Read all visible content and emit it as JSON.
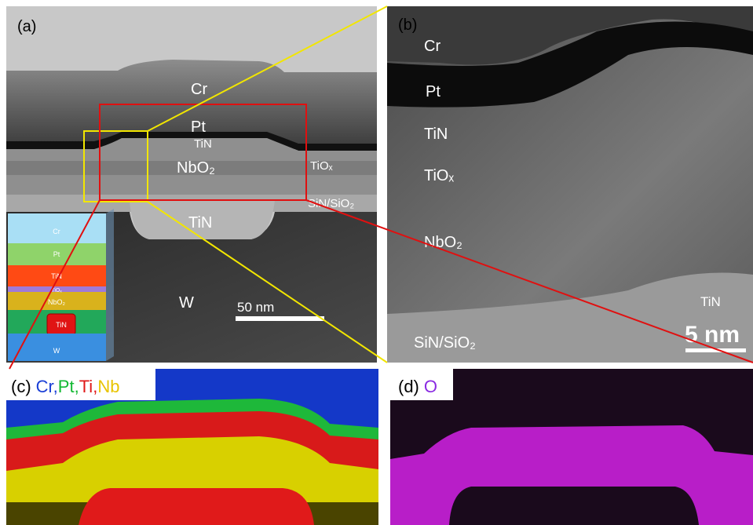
{
  "panels": {
    "a": {
      "label": "(a)",
      "layers": {
        "cr": "Cr",
        "pt": "Pt",
        "tin_top": "TiN",
        "nbo2": "NbO₂",
        "tiox": "TiOₓ",
        "sin": "SiN/SiO₂",
        "tin_bottom": "TiN",
        "w": "W"
      },
      "scale_bar": "50 nm",
      "inset": [
        "Cr",
        "Pt",
        "TiN",
        "TiOₓ",
        "NbO₂",
        "TiN",
        "W"
      ]
    },
    "b": {
      "label": "(b)",
      "layers": {
        "cr": "Cr",
        "pt": "Pt",
        "tin": "TiN",
        "tiox": "TiOₓ",
        "nbo2": "NbO₂",
        "tin_right": "TiN",
        "sin": "SiN/SiO₂"
      },
      "scale_bar": "5 nm"
    },
    "c": {
      "label": "(c)",
      "elements": [
        {
          "text": "Cr,",
          "color": "#1a3fd6"
        },
        {
          "text": "Pt,",
          "color": "#12b832"
        },
        {
          "text": "Ti,",
          "color": "#e01818"
        },
        {
          "text": "Nb",
          "color": "#e8c400"
        }
      ]
    },
    "d": {
      "label": "(d)",
      "elements": [
        {
          "text": "O",
          "color": "#8a2be2"
        }
      ]
    }
  }
}
